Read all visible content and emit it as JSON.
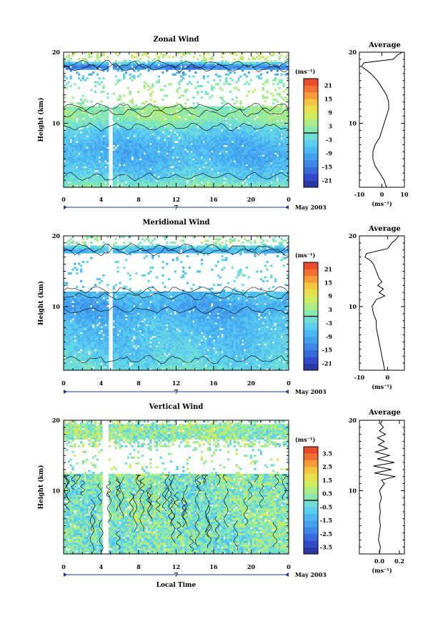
{
  "chart_data": [
    {
      "type": "heatmap",
      "title": "Zonal Wind",
      "ylabel": "Height (km)",
      "ylim": [
        1,
        20
      ],
      "y_ticks": [
        10,
        20
      ],
      "xlim": [
        0,
        24
      ],
      "x_ticks": [
        "0",
        "4",
        "8",
        "12",
        "16",
        "20",
        "0"
      ],
      "date_label": "7",
      "month_label": "May 2003",
      "colorbar_unit": "(ms⁻¹)",
      "colorbar_ticks": [
        "21",
        "15",
        "9",
        "3",
        "-3",
        "-9",
        "-15",
        "-21"
      ],
      "colorbar_range": [
        -24,
        24
      ],
      "gap_hour": 5,
      "value_profile": [
        {
          "h": 1,
          "v": 2
        },
        {
          "h": 2,
          "v": -2
        },
        {
          "h": 3,
          "v": -5
        },
        {
          "h": 5,
          "v": -8
        },
        {
          "h": 7,
          "v": -8
        },
        {
          "h": 9,
          "v": -4
        },
        {
          "h": 10,
          "v": 0
        },
        {
          "h": 11,
          "v": 3
        },
        {
          "h": 12,
          "v": 2
        },
        {
          "h": 13,
          "v": 3
        },
        {
          "h": 15,
          "v": 3
        },
        {
          "h": 16,
          "v": 0
        },
        {
          "h": 17,
          "v": -8
        },
        {
          "h": 18,
          "v": -14
        },
        {
          "h": 19,
          "v": 6
        }
      ],
      "average": {
        "title": "Average",
        "xlabel": "(ms⁻¹)",
        "xlim": [
          -10,
          10
        ],
        "x_ticks": [
          "-10",
          "0",
          "10"
        ],
        "y_ticks": [
          10,
          20
        ],
        "ylim": [
          1,
          20
        ],
        "profile": [
          {
            "x": 2,
            "y": 1
          },
          {
            "x": 1,
            "y": 2
          },
          {
            "x": -1,
            "y": 3
          },
          {
            "x": -3,
            "y": 4
          },
          {
            "x": -4,
            "y": 5
          },
          {
            "x": -4,
            "y": 6
          },
          {
            "x": -3,
            "y": 7
          },
          {
            "x": -1,
            "y": 8
          },
          {
            "x": 0,
            "y": 9
          },
          {
            "x": 1,
            "y": 10
          },
          {
            "x": 2,
            "y": 11
          },
          {
            "x": 3,
            "y": 12
          },
          {
            "x": 3,
            "y": 13
          },
          {
            "x": 2,
            "y": 14
          },
          {
            "x": 0,
            "y": 15
          },
          {
            "x": -2,
            "y": 16
          },
          {
            "x": -5,
            "y": 17
          },
          {
            "x": -9,
            "y": 18
          },
          {
            "x": -8,
            "y": 18.5
          },
          {
            "x": 5,
            "y": 19
          },
          {
            "x": 7,
            "y": 19.6
          },
          {
            "x": 9,
            "y": 20
          }
        ]
      }
    },
    {
      "type": "heatmap",
      "title": "Meridional Wind",
      "ylabel": "Height (km)",
      "ylim": [
        1,
        20
      ],
      "y_ticks": [
        10,
        20
      ],
      "xlim": [
        0,
        24
      ],
      "x_ticks": [
        "0",
        "4",
        "8",
        "12",
        "16",
        "20",
        "0"
      ],
      "date_label": "7",
      "month_label": "May 2003",
      "colorbar_unit": "(ms⁻¹)",
      "colorbar_ticks": [
        "21",
        "15",
        "9",
        "3",
        "-3",
        "-9",
        "-15",
        "-21"
      ],
      "colorbar_range": [
        -24,
        24
      ],
      "gap_hour": 5,
      "value_profile": [
        {
          "h": 1,
          "v": -2
        },
        {
          "h": 2,
          "v": -3
        },
        {
          "h": 4,
          "v": -5
        },
        {
          "h": 6,
          "v": -6
        },
        {
          "h": 8,
          "v": -7
        },
        {
          "h": 10,
          "v": -10
        },
        {
          "h": 11,
          "v": -8
        },
        {
          "h": 12,
          "v": -6
        },
        {
          "h": 14,
          "v": -4
        },
        {
          "h": 16,
          "v": -4
        },
        {
          "h": 17,
          "v": -6
        },
        {
          "h": 18,
          "v": -8
        },
        {
          "h": 19,
          "v": 2
        }
      ],
      "average": {
        "title": "Average",
        "xlabel": "(ms⁻¹)",
        "xlim": [
          -10,
          6
        ],
        "x_ticks": [
          "-10",
          "0"
        ],
        "y_ticks": [
          10,
          20
        ],
        "ylim": [
          1,
          20
        ],
        "profile": [
          {
            "x": -1,
            "y": 1
          },
          {
            "x": -1.5,
            "y": 2
          },
          {
            "x": -2,
            "y": 3
          },
          {
            "x": -2.5,
            "y": 4
          },
          {
            "x": -3,
            "y": 5
          },
          {
            "x": -3.5,
            "y": 6
          },
          {
            "x": -4,
            "y": 7
          },
          {
            "x": -4,
            "y": 8
          },
          {
            "x": -5,
            "y": 9
          },
          {
            "x": -5.5,
            "y": 10
          },
          {
            "x": -4,
            "y": 11
          },
          {
            "x": -1,
            "y": 11.5
          },
          {
            "x": -3,
            "y": 12
          },
          {
            "x": -1.5,
            "y": 12.5
          },
          {
            "x": -3.5,
            "y": 13
          },
          {
            "x": -2,
            "y": 13.5
          },
          {
            "x": -3,
            "y": 14
          },
          {
            "x": -4,
            "y": 15
          },
          {
            "x": -5,
            "y": 16
          },
          {
            "x": -6,
            "y": 16.5
          },
          {
            "x": -8,
            "y": 17
          },
          {
            "x": -7.5,
            "y": 17.5
          },
          {
            "x": 0,
            "y": 18.2
          },
          {
            "x": 1.5,
            "y": 19
          },
          {
            "x": 3,
            "y": 19.5
          },
          {
            "x": 4,
            "y": 20
          }
        ]
      }
    },
    {
      "type": "heatmap",
      "title": "Vertical Wind",
      "xlabel": "Local Time",
      "ylabel": "Height (km)",
      "ylim": [
        1,
        20
      ],
      "y_ticks": [
        10,
        20
      ],
      "xlim": [
        0,
        24
      ],
      "x_ticks": [
        "0",
        "4",
        "8",
        "12",
        "16",
        "20",
        "0"
      ],
      "date_label": "7",
      "month_label": "May 2003",
      "colorbar_unit": "(ms⁻¹)",
      "colorbar_ticks": [
        "3.5",
        "2.5",
        "1.5",
        "0.5",
        "-0.5",
        "-1.5",
        "-2.5",
        "-3.5"
      ],
      "colorbar_range": [
        -4,
        4
      ],
      "gap_hour": 4.5,
      "value_profile": [
        {
          "h": 1,
          "v": 0
        },
        {
          "h": 5,
          "v": 0.1
        },
        {
          "h": 10,
          "v": 0
        },
        {
          "h": 12,
          "v": 0.2
        },
        {
          "h": 15,
          "v": 0.5
        },
        {
          "h": 17,
          "v": 0.3
        },
        {
          "h": 19,
          "v": 0.4
        }
      ],
      "average": {
        "title": "Average",
        "xlabel": "(ms⁻¹)",
        "xlim": [
          -0.2,
          0.25
        ],
        "x_ticks": [
          "0.0",
          "0.2"
        ],
        "y_ticks": [
          10,
          20
        ],
        "ylim": [
          1,
          20
        ],
        "profile": [
          {
            "x": 0.0,
            "y": 1
          },
          {
            "x": 0.01,
            "y": 2
          },
          {
            "x": -0.01,
            "y": 3
          },
          {
            "x": 0.0,
            "y": 4
          },
          {
            "x": 0.01,
            "y": 5
          },
          {
            "x": 0.0,
            "y": 6
          },
          {
            "x": 0.01,
            "y": 7
          },
          {
            "x": 0.0,
            "y": 8
          },
          {
            "x": 0.02,
            "y": 9
          },
          {
            "x": 0.0,
            "y": 10
          },
          {
            "x": 0.05,
            "y": 11
          },
          {
            "x": 0.02,
            "y": 11.5
          },
          {
            "x": 0.16,
            "y": 12
          },
          {
            "x": -0.05,
            "y": 12.5
          },
          {
            "x": 0.12,
            "y": 13
          },
          {
            "x": -0.06,
            "y": 13.5
          },
          {
            "x": 0.15,
            "y": 14
          },
          {
            "x": -0.02,
            "y": 14.5
          },
          {
            "x": 0.1,
            "y": 15
          },
          {
            "x": -0.04,
            "y": 15.5
          },
          {
            "x": 0.08,
            "y": 16
          },
          {
            "x": -0.01,
            "y": 16.5
          },
          {
            "x": 0.05,
            "y": 17
          },
          {
            "x": -0.02,
            "y": 17.5
          },
          {
            "x": 0.06,
            "y": 18
          },
          {
            "x": 0.0,
            "y": 18.5
          },
          {
            "x": 0.04,
            "y": 19
          },
          {
            "x": 0.01,
            "y": 19.5
          },
          {
            "x": 0.03,
            "y": 20
          }
        ]
      }
    }
  ]
}
